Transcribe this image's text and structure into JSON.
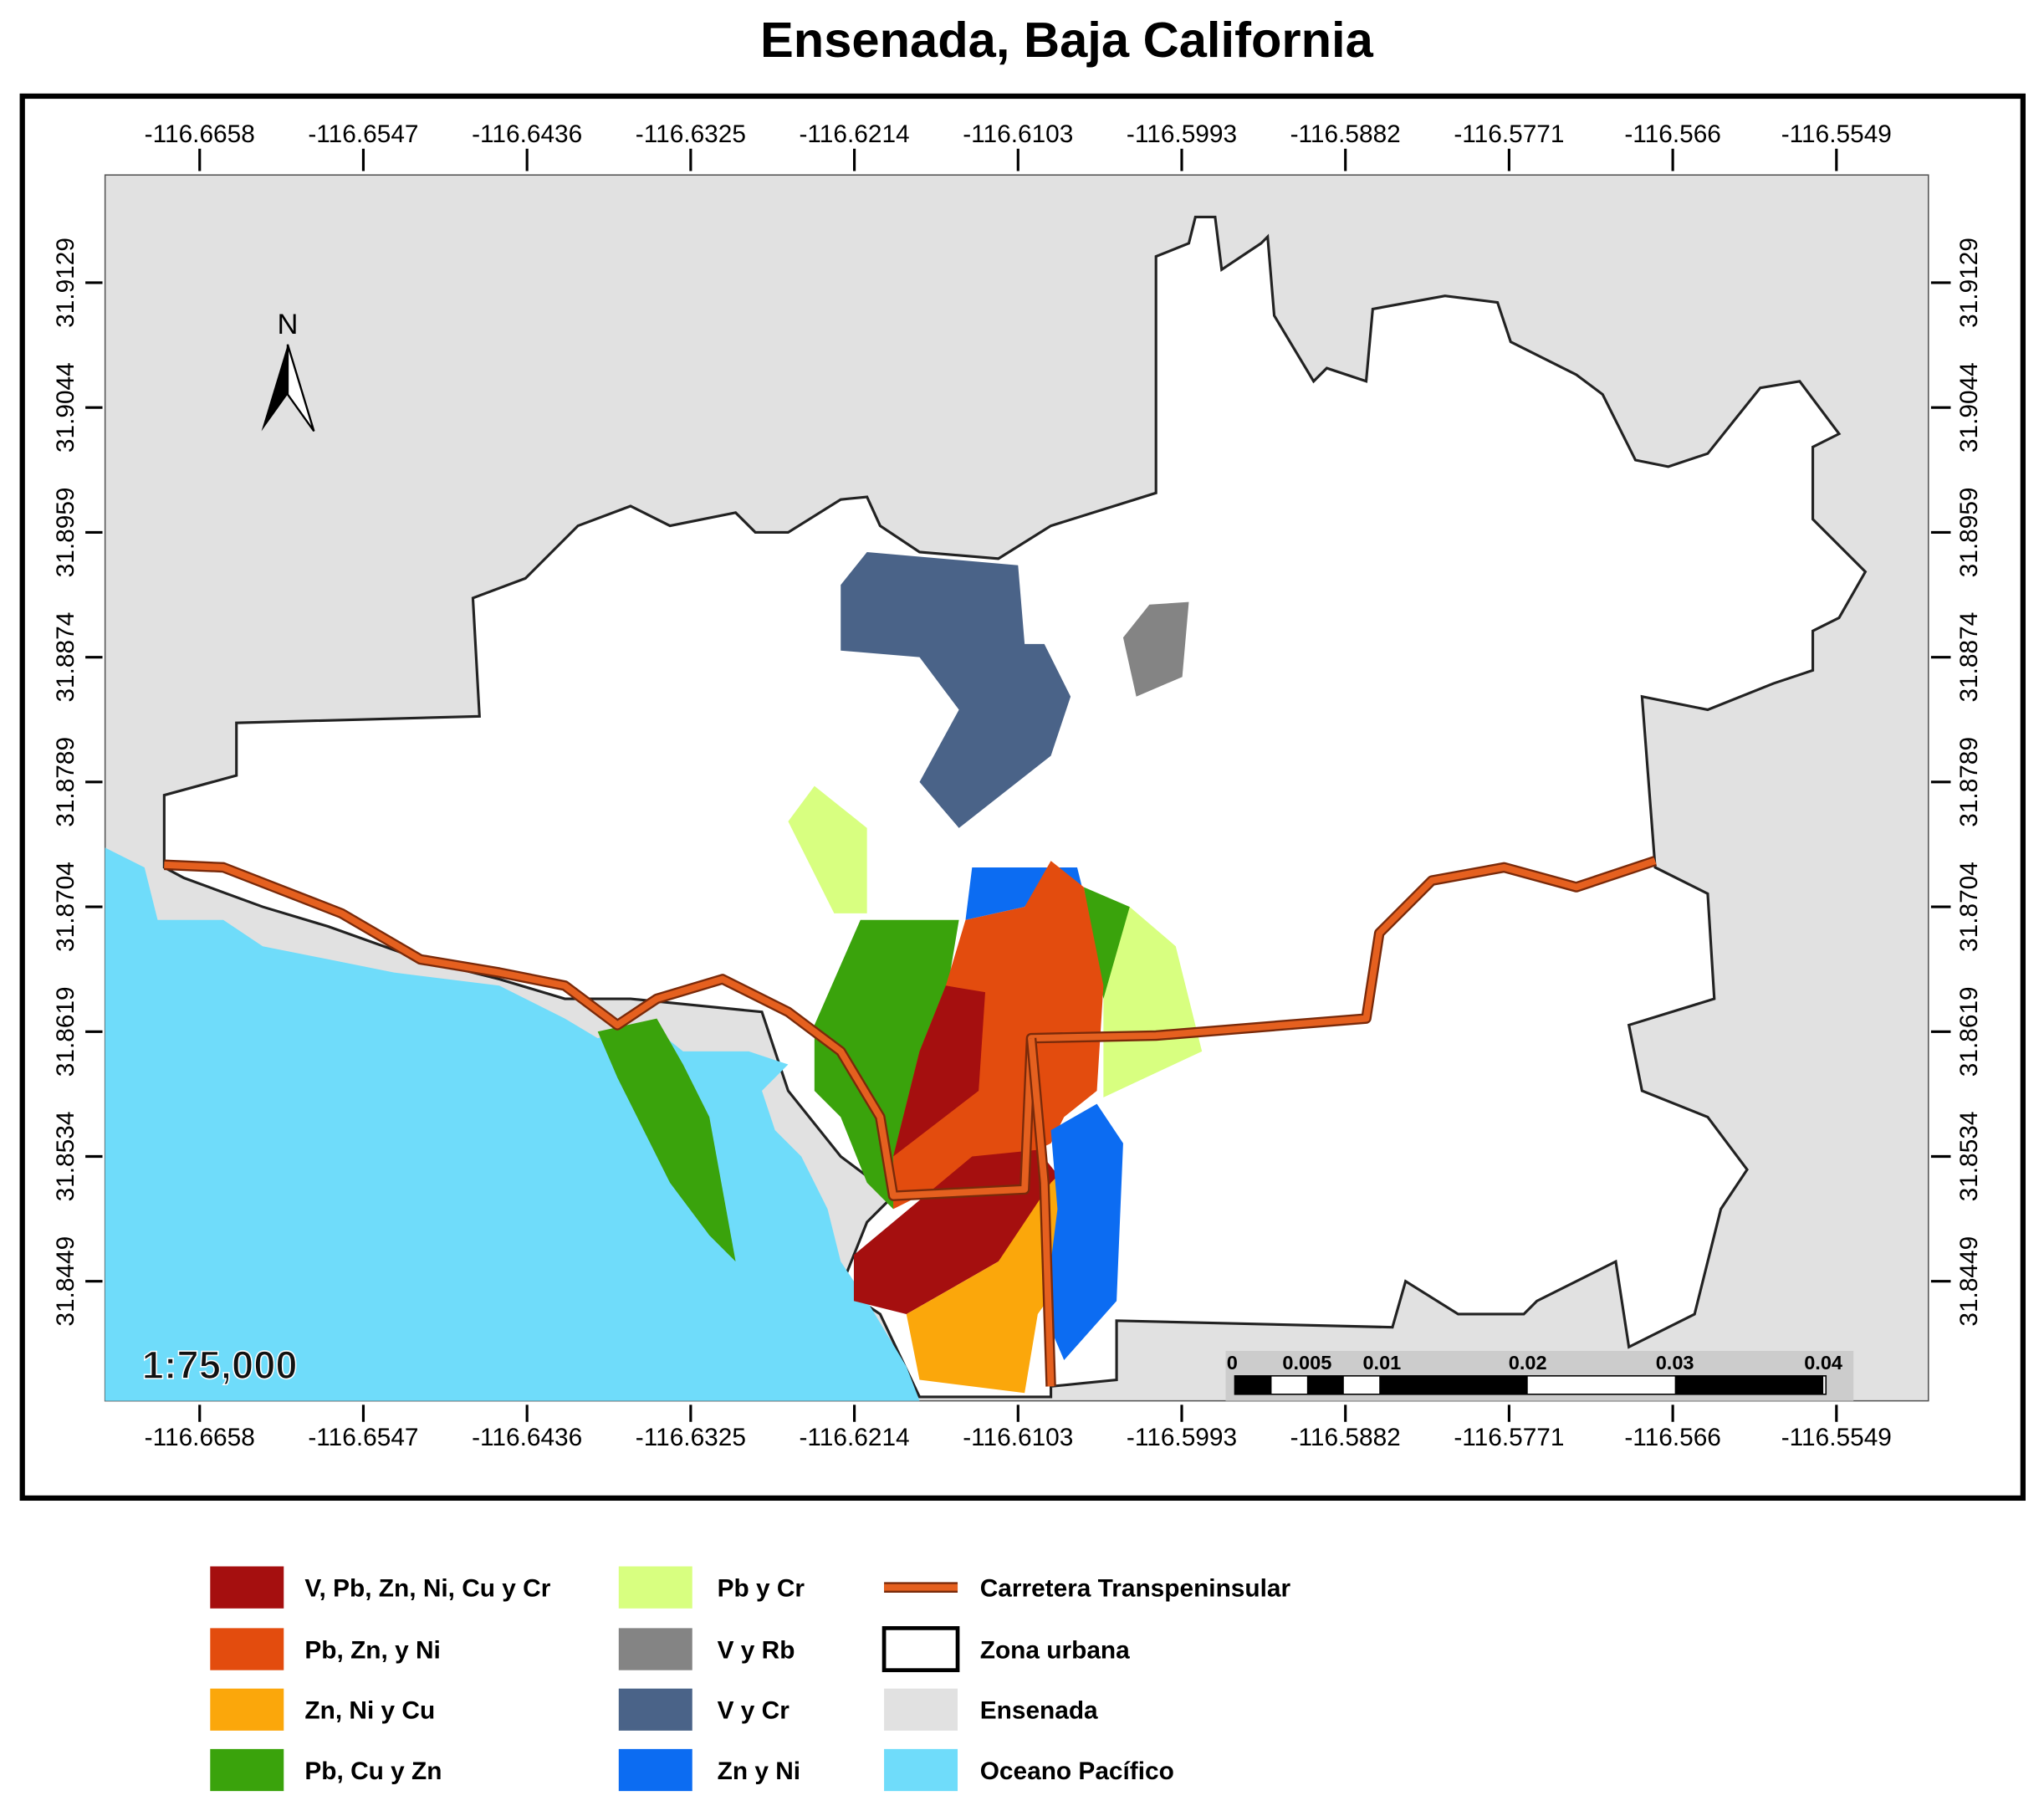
{
  "title": "Ensenada, Baja California",
  "x_ticks": [
    "-116.6658",
    "-116.6547",
    "-116.6436",
    "-116.6325",
    "-116.6214",
    "-116.6103",
    "-116.5993",
    "-116.5882",
    "-116.5771",
    "-116.566",
    "-116.5549"
  ],
  "y_ticks": [
    "31.9129",
    "31.9044",
    "31.8959",
    "31.8874",
    "31.8789",
    "31.8704",
    "31.8619",
    "31.8534",
    "31.8449"
  ],
  "north": "N",
  "scale": "1:75,000",
  "scale_bar": [
    "0",
    "0.005",
    "0.01",
    "0.02",
    "0.03",
    "0.04"
  ],
  "legend": [
    {
      "label": "V, Pb, Zn, Ni, Cu y Cr",
      "color": "#a50f0f"
    },
    {
      "label": "Pb, Zn, y Ni",
      "color": "#e34c0e"
    },
    {
      "label": "Zn, Ni y Cu",
      "color": "#fba70b"
    },
    {
      "label": "Pb, Cu y Zn",
      "color": "#3aa30c"
    },
    {
      "label": "Pb y Cr",
      "color": "#d8ff80"
    },
    {
      "label": "V y Rb",
      "color": "#848484"
    },
    {
      "label": "V y Cr",
      "color": "#4a6388"
    },
    {
      "label": "Zn y Ni",
      "color": "#0c6cf2"
    },
    {
      "label": "Carretera Transpeninsular",
      "color": "#e5601f"
    },
    {
      "label": "Zona urbana",
      "color": "#ffffff"
    },
    {
      "label": "Ensenada",
      "color": "#e1e1e1"
    },
    {
      "label": "Oceano Pacífico",
      "color": "#6fdcfa"
    }
  ]
}
